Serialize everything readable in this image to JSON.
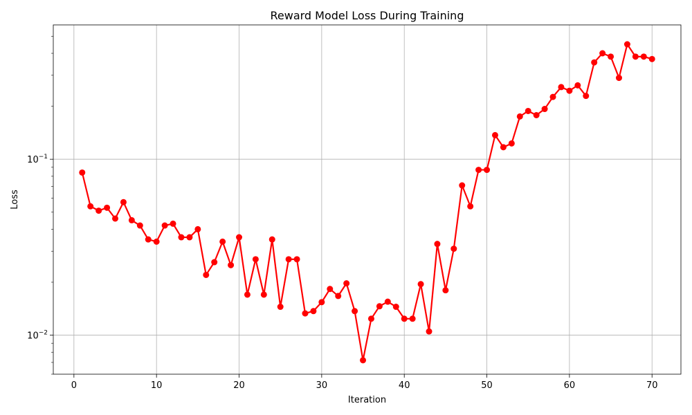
{
  "chart_data": {
    "type": "line",
    "title": "Reward Model Loss During Training",
    "xlabel": "Iteration",
    "ylabel": "Loss",
    "xlim": [
      -2.5,
      73.5
    ],
    "ylim": [
      0.006,
      0.58
    ],
    "yscale": "log",
    "grid": true,
    "x_ticks": [
      0,
      10,
      20,
      30,
      40,
      50,
      60,
      70
    ],
    "y_ticks": [
      {
        "value": 0.01,
        "label_base": "10",
        "label_exp": "−2"
      },
      {
        "value": 0.1,
        "label_base": "10",
        "label_exp": "−1"
      }
    ],
    "series": [
      {
        "color": "#ff0000",
        "marker": "circle",
        "x": [
          1,
          2,
          3,
          4,
          5,
          6,
          7,
          8,
          9,
          10,
          11,
          12,
          13,
          14,
          15,
          16,
          17,
          18,
          19,
          20,
          21,
          22,
          23,
          24,
          25,
          26,
          27,
          28,
          29,
          30,
          31,
          32,
          33,
          34,
          35,
          36,
          37,
          38,
          39,
          40,
          41,
          42,
          43,
          44,
          45,
          46,
          47,
          48,
          49,
          50,
          51,
          52,
          53,
          54,
          55,
          56,
          57,
          58,
          59,
          60,
          61,
          62,
          63,
          64,
          65,
          66,
          67,
          68,
          69,
          70
        ],
        "y": [
          0.084,
          0.054,
          0.051,
          0.053,
          0.046,
          0.057,
          0.045,
          0.042,
          0.035,
          0.034,
          0.042,
          0.043,
          0.036,
          0.036,
          0.04,
          0.022,
          0.026,
          0.034,
          0.025,
          0.036,
          0.017,
          0.027,
          0.017,
          0.035,
          0.0145,
          0.027,
          0.027,
          0.0133,
          0.0137,
          0.0154,
          0.0183,
          0.0167,
          0.0197,
          0.0137,
          0.0072,
          0.0124,
          0.0146,
          0.0155,
          0.0145,
          0.0124,
          0.0124,
          0.0195,
          0.0105,
          0.033,
          0.018,
          0.031,
          0.071,
          0.054,
          0.087,
          0.087,
          0.137,
          0.117,
          0.123,
          0.175,
          0.188,
          0.178,
          0.193,
          0.226,
          0.257,
          0.245,
          0.263,
          0.229,
          0.355,
          0.4,
          0.383,
          0.29,
          0.45,
          0.383,
          0.383,
          0.371
        ]
      }
    ]
  }
}
